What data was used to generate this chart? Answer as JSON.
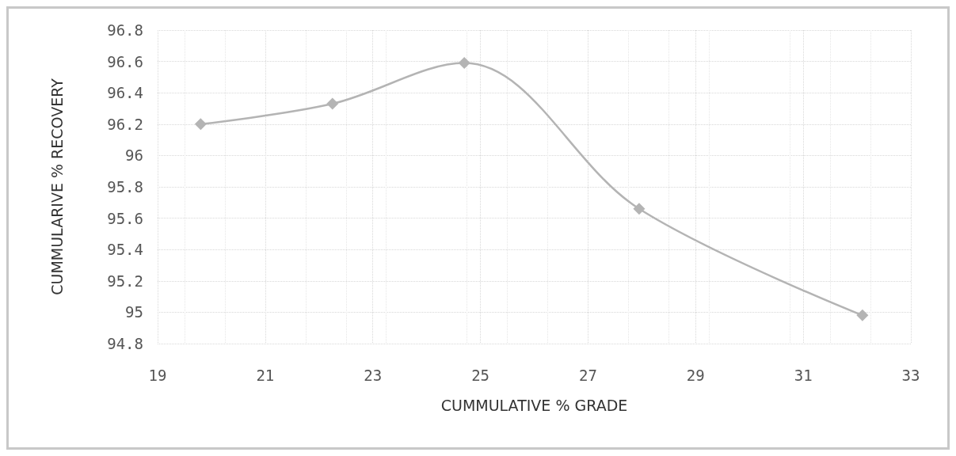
{
  "chart_data": {
    "type": "line",
    "xlabel": "CUMMULATIVE % GRADE",
    "ylabel": "CUMMULARIVE % RECOVERY",
    "x": [
      19.8,
      22.25,
      24.7,
      27.95,
      32.1
    ],
    "series": [
      {
        "color": "#b4b4b4",
        "values": [
          96.2,
          96.33,
          96.59,
          95.66,
          94.98
        ]
      }
    ],
    "xlim": [
      19,
      33
    ],
    "xticks": [
      19,
      21,
      23,
      25,
      27,
      29,
      31,
      33
    ],
    "ylim": [
      94.8,
      96.8
    ],
    "yticks": [
      94.8,
      95,
      95.2,
      95.4,
      95.6,
      95.8,
      96,
      96.2,
      96.4,
      96.6,
      96.8
    ],
    "grid": true,
    "marker": "diamond",
    "line_style": "solid"
  }
}
